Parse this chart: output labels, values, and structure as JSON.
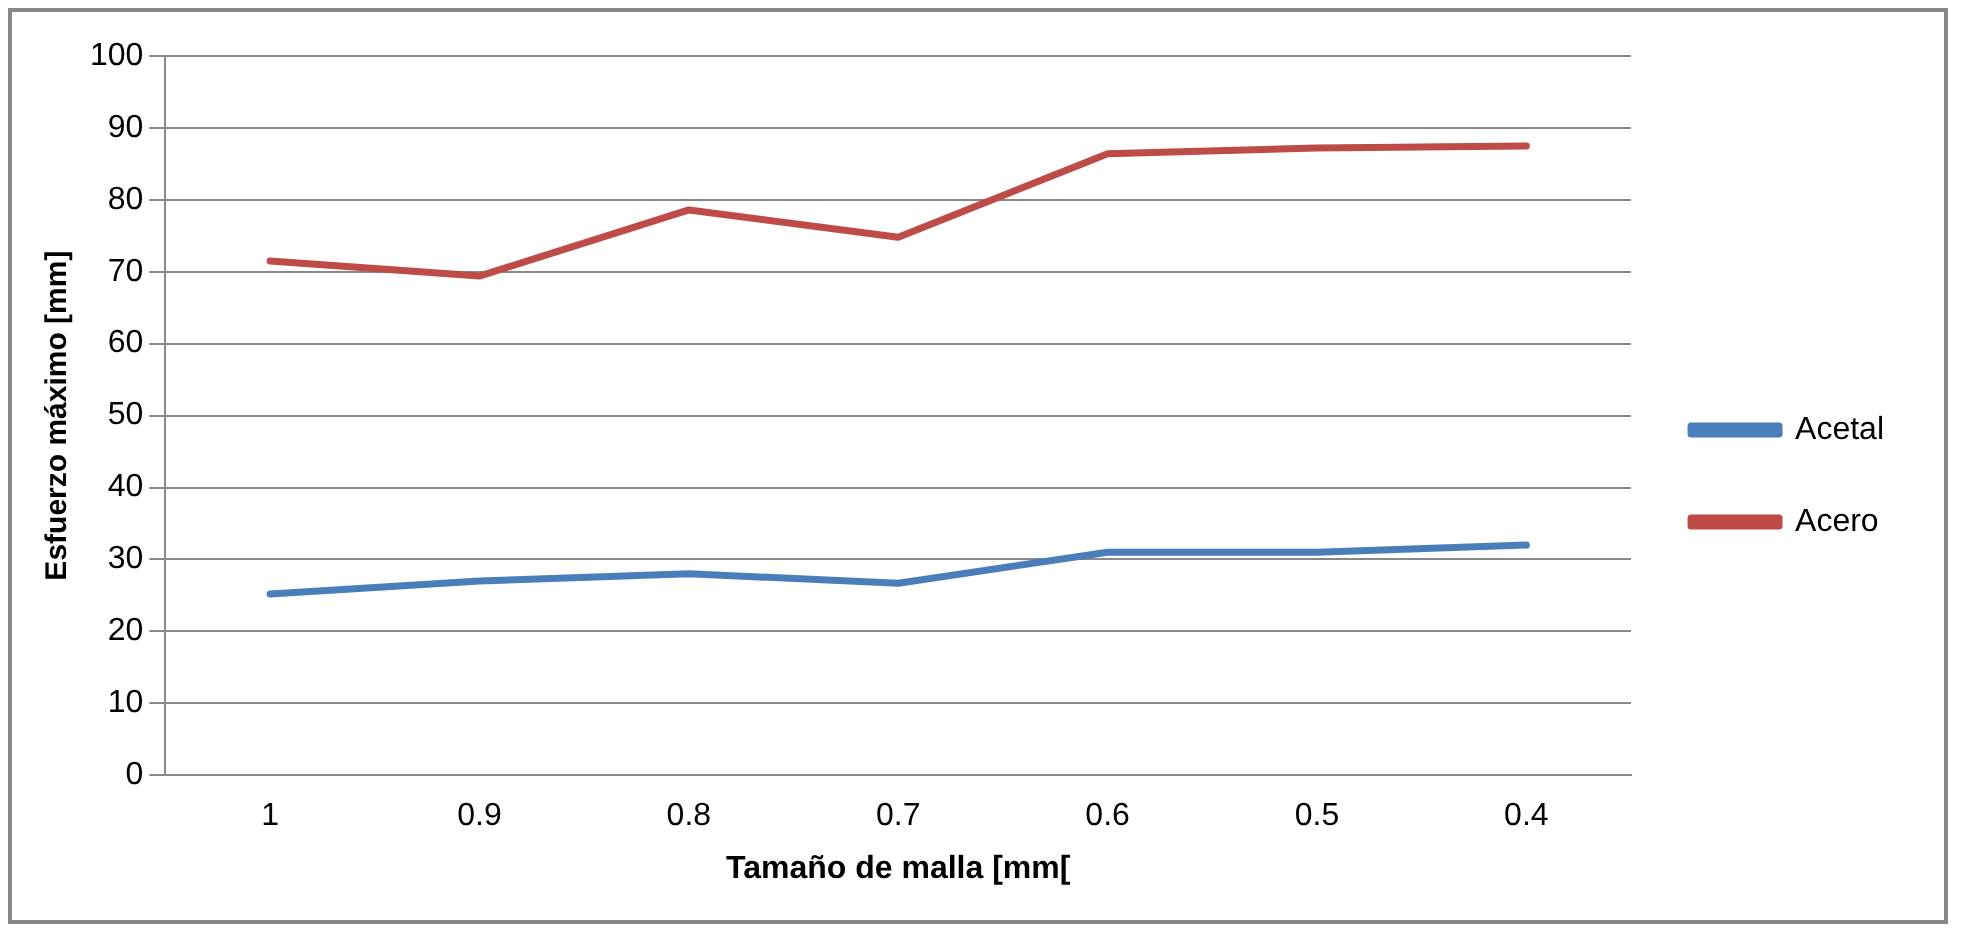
{
  "chart_data": {
    "type": "line",
    "xlabel": "Tamaño de malla [mm[",
    "ylabel": "Esfuerzo máximo [mm]",
    "categories": [
      "1",
      "0.9",
      "0.8",
      "0.7",
      "0.6",
      "0.5",
      "0.4"
    ],
    "series": [
      {
        "name": "Acetal",
        "color": "#4a7ebb",
        "values": [
          25.2,
          27,
          28,
          26.7,
          31,
          31,
          32
        ]
      },
      {
        "name": "Acero",
        "color": "#be4b48",
        "values": [
          71.5,
          69.4,
          78.6,
          74.8,
          86.4,
          87.2,
          87.5
        ]
      }
    ],
    "ylim": [
      0,
      100
    ],
    "yticks": [
      0,
      10,
      20,
      30,
      40,
      50,
      60,
      70,
      80,
      90,
      100
    ],
    "grid": "y",
    "legend": "right",
    "marker": "none"
  }
}
